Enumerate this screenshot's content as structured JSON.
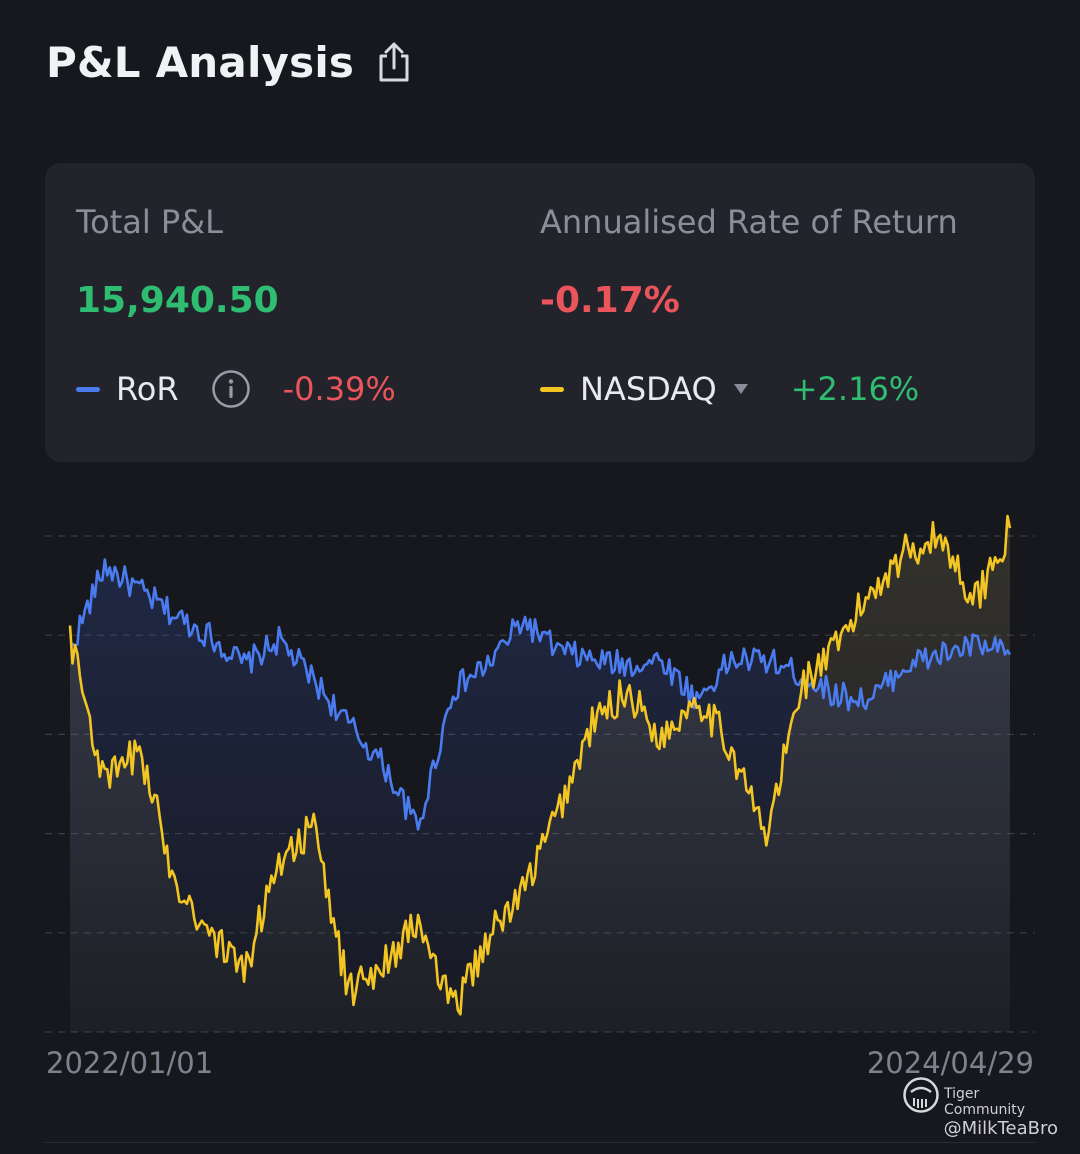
{
  "header": {
    "title": "P&L Analysis",
    "share_icon": "share-icon"
  },
  "summary": {
    "total_pl_label": "Total P&L",
    "total_pl_value": "15,940.50",
    "annualised_label": "Annualised Rate of Return",
    "annualised_value": "-0.17%",
    "ror": {
      "name": "RoR",
      "change": "-0.39%",
      "info_icon": "info-icon"
    },
    "benchmark": {
      "name": "NASDAQ",
      "change": "+2.16%",
      "dropdown_icon": "caret-down-icon"
    }
  },
  "colors": {
    "background": "#17181e",
    "card": "#23242b",
    "ror_line": "#4a7cf0",
    "benchmark_line": "#f2c523",
    "positive": "#2fbd72",
    "negative": "#e9555a"
  },
  "chart_data": {
    "type": "line",
    "x_start_label": "2022/01/01",
    "x_end_label": "2024/04/29",
    "x": [
      "2022-01",
      "2022-02",
      "2022-03",
      "2022-04",
      "2022-05",
      "2022-06",
      "2022-07",
      "2022-08",
      "2022-09",
      "2022-10",
      "2022-11",
      "2022-12",
      "2023-01",
      "2023-02",
      "2023-03",
      "2023-04",
      "2023-05",
      "2023-06",
      "2023-07",
      "2023-08",
      "2023-09",
      "2023-10",
      "2023-11",
      "2023-12",
      "2024-01",
      "2024-02",
      "2024-03",
      "2024-04-29"
    ],
    "grid": true,
    "series": [
      {
        "name": "RoR",
        "color": "#4a7cf0",
        "values": [
          -0.3,
          1.4,
          0.9,
          0.4,
          0.0,
          -0.6,
          -0.1,
          -0.9,
          -1.8,
          -2.6,
          -3.9,
          -1.1,
          -0.6,
          0.3,
          -0.3,
          -0.5,
          -0.6,
          -0.5,
          -1.3,
          -0.5,
          -0.5,
          -0.8,
          -1.2,
          -1.3,
          -0.6,
          -0.4,
          -0.2,
          -0.39
        ]
      },
      {
        "name": "NASDAQ",
        "color": "#f2c523",
        "values": [
          0.0,
          -3.0,
          -2.3,
          -4.9,
          -6.0,
          -6.8,
          -4.5,
          -3.9,
          -7.2,
          -6.6,
          -5.8,
          -7.6,
          -6.1,
          -5.2,
          -3.6,
          -1.8,
          -1.1,
          -2.1,
          -1.2,
          -2.3,
          -4.1,
          -1.0,
          -0.3,
          0.9,
          1.7,
          2.0,
          0.7,
          2.16
        ]
      }
    ],
    "ylim": [
      -8,
      2
    ]
  },
  "watermark": {
    "brand": "Tiger Community",
    "user": "@MilkTeaBro"
  }
}
